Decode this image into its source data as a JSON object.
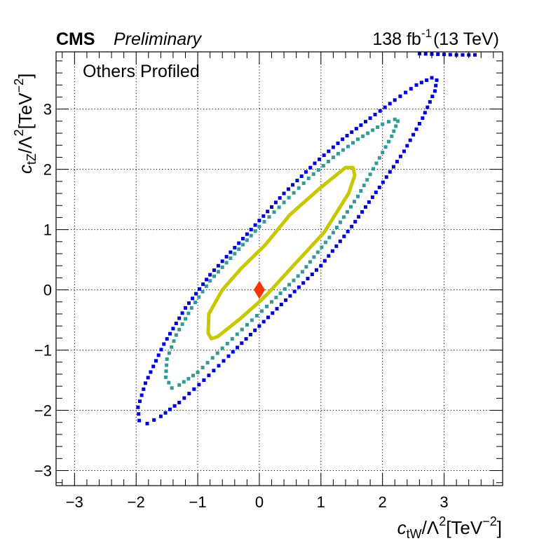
{
  "header": {
    "experiment": "CMS",
    "status": "Preliminary",
    "luminosity_value": "138 fb",
    "luminosity_exp": "-1",
    "energy": "(13 TeV)"
  },
  "annotation": "Others Profiled",
  "axes": {
    "x": {
      "var_main": "c",
      "var_sub": "tW",
      "lambda": "/Λ",
      "lambda_exp": "2",
      "unit_main": "[TeV",
      "unit_exp": "−2",
      "unit_close": "]"
    },
    "y": {
      "var_main": "c",
      "var_sub": "tZ",
      "lambda": "/Λ",
      "lambda_exp": "2",
      "unit_main": "[TeV",
      "unit_exp": "−2",
      "unit_close": "]"
    }
  },
  "colors": {
    "contour_1sigma": "#c9c800",
    "contour_2sigma": "#339999",
    "contour_3sigma": "#0000dd",
    "best_fit": "#ff3300"
  },
  "chart_data": {
    "type": "scatter",
    "xlim": [
      -3.3,
      3.95
    ],
    "ylim": [
      -3.25,
      3.95
    ],
    "grid": true,
    "x_ticks": [
      {
        "value": -3,
        "label": "−3"
      },
      {
        "value": -2,
        "label": "−2"
      },
      {
        "value": -1,
        "label": "−1"
      },
      {
        "value": 0,
        "label": "0"
      },
      {
        "value": 1,
        "label": "1"
      },
      {
        "value": 2,
        "label": "2"
      },
      {
        "value": 3,
        "label": "3"
      }
    ],
    "y_ticks": [
      {
        "value": -3,
        "label": "−3"
      },
      {
        "value": -2,
        "label": "−2"
      },
      {
        "value": -1,
        "label": "−1"
      },
      {
        "value": 0,
        "label": "0"
      },
      {
        "value": 1,
        "label": "1"
      },
      {
        "value": 2,
        "label": "2"
      },
      {
        "value": 3,
        "label": "3"
      }
    ],
    "best_fit": {
      "x": 0.0,
      "y": 0.0
    },
    "contours": [
      {
        "level": "1sigma",
        "style": "line",
        "points": [
          [
            -0.78,
            -0.81
          ],
          [
            -0.68,
            -0.78
          ],
          [
            -0.3,
            -0.47
          ],
          [
            0.0,
            -0.2
          ],
          [
            0.15,
            -0.05
          ],
          [
            0.55,
            0.4
          ],
          [
            1.05,
            0.95
          ],
          [
            1.45,
            1.6
          ],
          [
            1.55,
            1.9
          ],
          [
            1.52,
            2.03
          ],
          [
            1.4,
            2.03
          ],
          [
            1.0,
            1.7
          ],
          [
            0.5,
            1.25
          ],
          [
            0.1,
            0.75
          ],
          [
            -0.3,
            0.35
          ],
          [
            -0.6,
            0.0
          ],
          [
            -0.82,
            -0.4
          ],
          [
            -0.83,
            -0.72
          ],
          [
            -0.78,
            -0.81
          ]
        ]
      },
      {
        "level": "2sigma",
        "style": "dots",
        "points": [
          [
            -1.42,
            -1.63
          ],
          [
            -1.3,
            -1.58
          ],
          [
            -1.0,
            -1.37
          ],
          [
            -0.6,
            -0.97
          ],
          [
            -0.2,
            -0.58
          ],
          [
            0.2,
            -0.2
          ],
          [
            0.7,
            0.3
          ],
          [
            1.2,
            0.95
          ],
          [
            1.6,
            1.55
          ],
          [
            1.9,
            2.1
          ],
          [
            2.15,
            2.55
          ],
          [
            2.25,
            2.8
          ],
          [
            2.2,
            2.83
          ],
          [
            2.0,
            2.75
          ],
          [
            1.6,
            2.5
          ],
          [
            1.2,
            2.2
          ],
          [
            0.8,
            1.85
          ],
          [
            0.4,
            1.45
          ],
          [
            0.0,
            1.05
          ],
          [
            -0.4,
            0.6
          ],
          [
            -0.8,
            0.15
          ],
          [
            -1.1,
            -0.3
          ],
          [
            -1.35,
            -0.75
          ],
          [
            -1.5,
            -1.15
          ],
          [
            -1.52,
            -1.45
          ],
          [
            -1.42,
            -1.63
          ]
        ]
      },
      {
        "level": "3sigma",
        "style": "dots",
        "points": [
          [
            -1.82,
            -2.22
          ],
          [
            -1.6,
            -2.1
          ],
          [
            -1.3,
            -1.87
          ],
          [
            -0.9,
            -1.5
          ],
          [
            -0.5,
            -1.1
          ],
          [
            0.0,
            -0.6
          ],
          [
            0.5,
            -0.1
          ],
          [
            1.0,
            0.4
          ],
          [
            1.5,
            1.05
          ],
          [
            1.95,
            1.7
          ],
          [
            2.35,
            2.3
          ],
          [
            2.65,
            2.85
          ],
          [
            2.85,
            3.3
          ],
          [
            2.88,
            3.48
          ],
          [
            2.8,
            3.52
          ],
          [
            2.55,
            3.4
          ],
          [
            2.2,
            3.15
          ],
          [
            1.8,
            2.85
          ],
          [
            1.35,
            2.5
          ],
          [
            0.9,
            2.1
          ],
          [
            0.4,
            1.6
          ],
          [
            0.0,
            1.15
          ],
          [
            -0.4,
            0.7
          ],
          [
            -0.8,
            0.25
          ],
          [
            -1.2,
            -0.3
          ],
          [
            -1.55,
            -0.9
          ],
          [
            -1.85,
            -1.55
          ],
          [
            -1.97,
            -1.95
          ],
          [
            -1.95,
            -2.17
          ],
          [
            -1.82,
            -2.22
          ]
        ]
      },
      {
        "level": "3sigma",
        "style": "dots",
        "points": [
          [
            2.6,
            3.92
          ],
          [
            2.9,
            3.91
          ],
          [
            3.2,
            3.9
          ],
          [
            3.5,
            3.9
          ],
          [
            3.65,
            3.92
          ]
        ]
      }
    ]
  }
}
